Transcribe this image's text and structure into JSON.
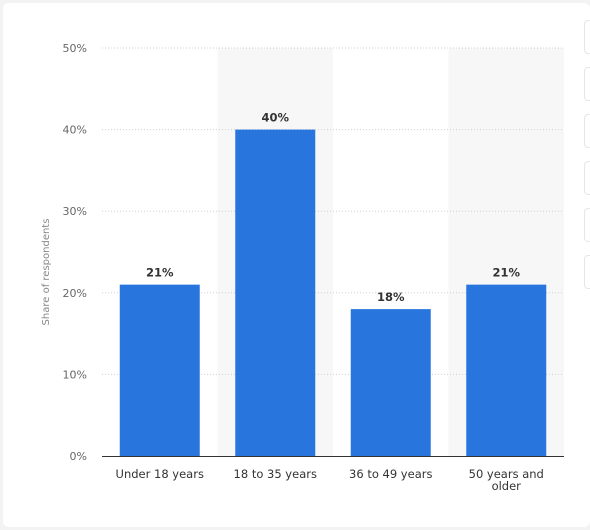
{
  "chart_data": {
    "type": "bar",
    "categories": [
      [
        "Under 18 years"
      ],
      [
        "18 to 35 years"
      ],
      [
        "36 to 49 years"
      ],
      [
        "50 years and",
        "older"
      ]
    ],
    "values": [
      21,
      40,
      18,
      21
    ],
    "data_labels": [
      "21%",
      "40%",
      "18%",
      "21%"
    ],
    "ylabel": "Share of respondents",
    "ylim": [
      0,
      50
    ],
    "yticks": [
      0,
      10,
      20,
      30,
      40,
      50
    ],
    "ytick_labels": [
      "0%",
      "10%",
      "20%",
      "30%",
      "40%",
      "50%"
    ],
    "grid": true,
    "bar_color": "#2876dd",
    "band_color": "#f7f7f7"
  },
  "side_toolbar": {
    "icons": [
      "star-icon",
      "bell-icon",
      "gear-icon",
      "share-icon",
      "quote-icon",
      "print-icon"
    ]
  }
}
